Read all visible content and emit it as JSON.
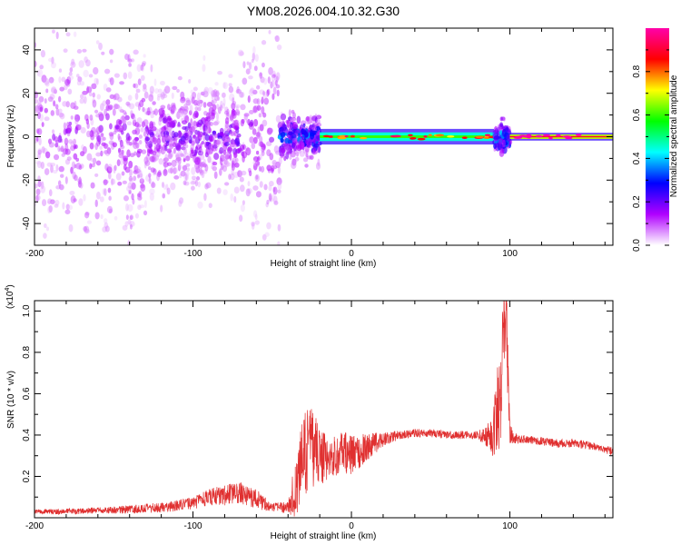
{
  "title": "YM08.2026.004.10.32.G30",
  "chart_data": [
    {
      "type": "heatmap",
      "xlabel": "Height of straight line (km)",
      "ylabel": "Frequency (Hz)",
      "xlim": [
        -200,
        165
      ],
      "ylim": [
        -50,
        50
      ],
      "xticks": [
        -200,
        -100,
        0,
        100
      ],
      "xticks_minor": [
        -180,
        -160,
        -140,
        -120,
        -80,
        -60,
        -40,
        -20,
        20,
        40,
        60,
        80,
        120,
        140,
        160
      ],
      "yticks": [
        -40,
        -20,
        0,
        20,
        40
      ],
      "yticks_minor": [
        -50,
        -30,
        -10,
        10,
        30,
        50
      ],
      "colorbar": {
        "label": "Normalized spectral amplitude",
        "range": [
          0,
          1
        ],
        "ticks": [
          0.0,
          0.2,
          0.4,
          0.6,
          0.8
        ],
        "ticks_minor": [
          0.1,
          0.3,
          0.5,
          0.7,
          0.9
        ],
        "colors": [
          "#ffffff",
          "#b000ff",
          "#0000ff",
          "#00ffff",
          "#00ff00",
          "#ffff00",
          "#ff0000",
          "#ff00aa"
        ]
      },
      "regions": [
        {
          "x": [
            -200,
            -130
          ],
          "freq_spread": 50,
          "amplitude": 0.15
        },
        {
          "x": [
            -130,
            -70
          ],
          "freq_spread": 20,
          "amplitude": 0.2
        },
        {
          "x": [
            -70,
            -45
          ],
          "freq_spread": 50,
          "amplitude": 0.15
        },
        {
          "x": [
            -45,
            -20
          ],
          "freq_spread": 8,
          "amplitude": 0.35
        },
        {
          "x": [
            -20,
            90
          ],
          "freq_spread": 2,
          "amplitude": 0.6
        },
        {
          "x": [
            90,
            100
          ],
          "freq_spread": 6,
          "amplitude": 0.45
        },
        {
          "x": [
            100,
            165
          ],
          "freq_spread": 1,
          "amplitude": 0.9
        }
      ]
    },
    {
      "type": "line",
      "xlabel": "Height of straight line (km)",
      "ylabel": "SNR (10 * v/v)",
      "y_multiplier": "(x10",
      "y_multiplier_exp": "4",
      "xlim": [
        -200,
        165
      ],
      "ylim": [
        0,
        1.05
      ],
      "xticks": [
        -200,
        -100,
        0,
        100
      ],
      "xticks_minor": [
        -180,
        -160,
        -140,
        -120,
        -80,
        -60,
        -40,
        -20,
        20,
        40,
        60,
        80,
        120,
        140,
        160
      ],
      "yticks": [
        0.2,
        0.4,
        0.6,
        0.8,
        1.0
      ],
      "yticks_minor": [
        0.1,
        0.3,
        0.5,
        0.7,
        0.9
      ],
      "line_color": "#e03030",
      "series": [
        {
          "x": [
            -200,
            -180,
            -160,
            -140,
            -120,
            -100,
            -90,
            -80,
            -70,
            -60,
            -50,
            -40,
            -35,
            -30,
            -25,
            -20,
            -15,
            -10,
            -5,
            0,
            5,
            10,
            15,
            20,
            30,
            40,
            50,
            60,
            70,
            80,
            88,
            92,
            95,
            96,
            98,
            100,
            105,
            110,
            120,
            130,
            140,
            150,
            160,
            165
          ],
          "values": [
            0.03,
            0.03,
            0.035,
            0.04,
            0.05,
            0.07,
            0.1,
            0.11,
            0.12,
            0.09,
            0.05,
            0.05,
            0.15,
            0.3,
            0.35,
            0.3,
            0.28,
            0.3,
            0.32,
            0.3,
            0.32,
            0.34,
            0.36,
            0.38,
            0.4,
            0.41,
            0.41,
            0.4,
            0.4,
            0.4,
            0.39,
            0.5,
            0.7,
            1.0,
            0.9,
            0.4,
            0.38,
            0.38,
            0.37,
            0.36,
            0.36,
            0.35,
            0.33,
            0.32
          ],
          "noise": [
            0.01,
            0.015,
            0.015,
            0.02,
            0.025,
            0.03,
            0.04,
            0.05,
            0.05,
            0.05,
            0.02,
            0.03,
            0.15,
            0.2,
            0.2,
            0.15,
            0.1,
            0.1,
            0.1,
            0.1,
            0.08,
            0.07,
            0.05,
            0.04,
            0.02,
            0.02,
            0.02,
            0.02,
            0.02,
            0.02,
            0.08,
            0.25,
            0.3,
            0.15,
            0.35,
            0.05,
            0.02,
            0.02,
            0.02,
            0.02,
            0.02,
            0.02,
            0.02,
            0.02
          ]
        }
      ]
    }
  ]
}
